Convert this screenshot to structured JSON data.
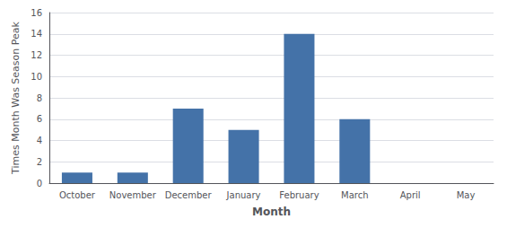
{
  "chart_data": {
    "type": "bar",
    "categories": [
      "October",
      "November",
      "December",
      "January",
      "February",
      "March",
      "April",
      "May"
    ],
    "values": [
      1,
      1,
      7,
      5,
      14,
      6,
      0,
      0
    ],
    "color": "#4472a8",
    "xlabel": "Month",
    "ylabel": "Times Month Was Season Peak",
    "ylim": [
      0,
      16
    ],
    "yticks": [
      0,
      2,
      4,
      6,
      8,
      10,
      12,
      14,
      16
    ],
    "grid": true
  }
}
